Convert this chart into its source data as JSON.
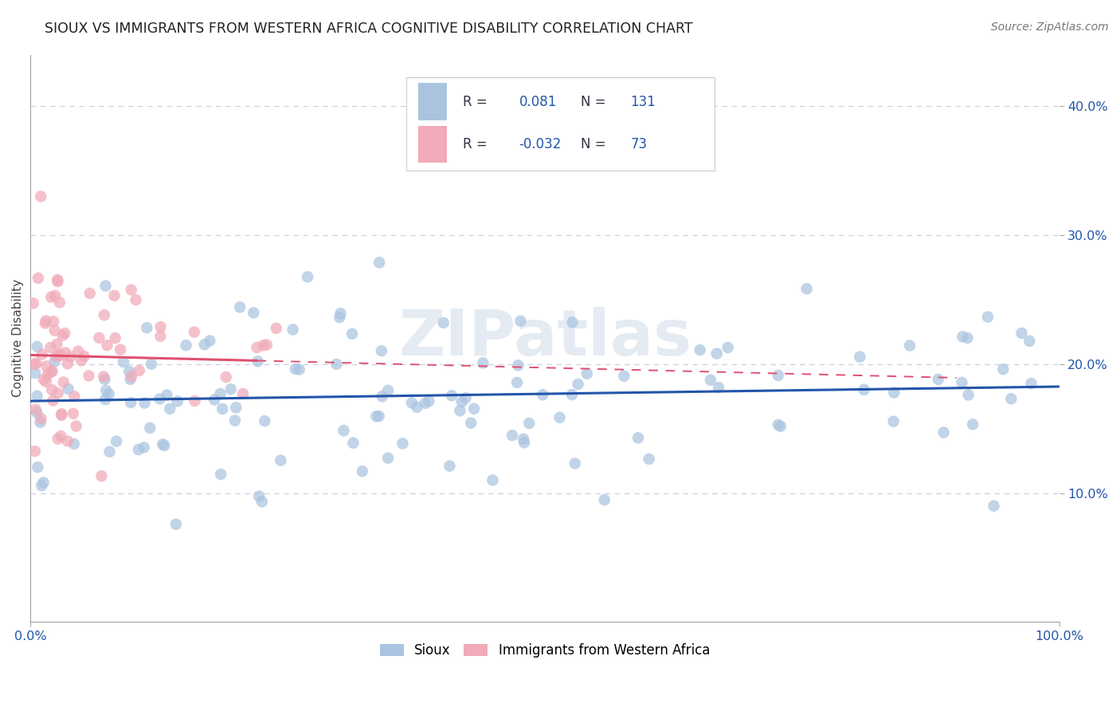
{
  "title": "SIOUX VS IMMIGRANTS FROM WESTERN AFRICA COGNITIVE DISABILITY CORRELATION CHART",
  "source": "Source: ZipAtlas.com",
  "ylabel": "Cognitive Disability",
  "xlim": [
    0,
    1.0
  ],
  "ylim": [
    0,
    0.44
  ],
  "sioux_R": 0.081,
  "sioux_N": 131,
  "immigrants_R": -0.032,
  "immigrants_N": 73,
  "sioux_color": "#aac4e0",
  "immigrants_color": "#f0aab8",
  "sioux_line_color": "#2255aa",
  "immigrants_line_color": "#e05070",
  "watermark": "ZIPatlas",
  "ytick_positions": [
    0.1,
    0.2,
    0.3,
    0.4
  ],
  "ytick_labels": [
    "10.0%",
    "20.0%",
    "30.0%",
    "40.0%"
  ],
  "xtick_positions": [
    0.0,
    1.0
  ],
  "xtick_labels": [
    "0.0%",
    "100.0%"
  ],
  "legend_R1": "R = ",
  "legend_val1": "0.081",
  "legend_N1": "N = ",
  "legend_count1": "131",
  "legend_R2": "R = ",
  "legend_val2": "-0.032",
  "legend_N2": "N = ",
  "legend_count2": "73",
  "blue_text_color": "#2255aa",
  "dark_text_color": "#333344",
  "grid_color": "#ccccdd",
  "source_color": "#777777",
  "title_color": "#222222"
}
